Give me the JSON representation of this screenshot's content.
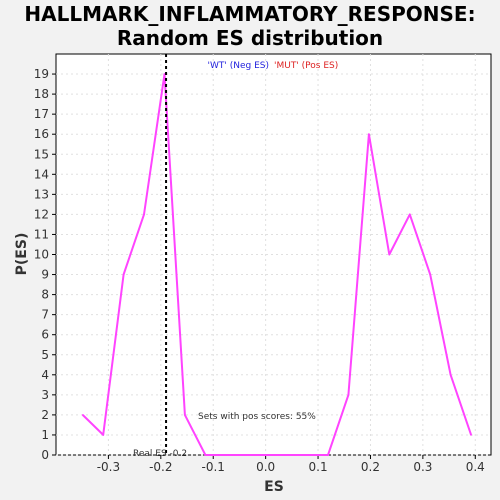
{
  "chart_data": {
    "type": "line",
    "title_line1": "HALLMARK_INFLAMMATORY_RESPONSE:",
    "title_line2": "Random ES distribution",
    "xlabel": "ES",
    "ylabel": "P(ES)",
    "xlim": [
      -0.4,
      0.43
    ],
    "ylim": [
      0,
      20
    ],
    "xticks": [
      -0.3,
      -0.2,
      -0.1,
      0.0,
      0.1,
      0.2,
      0.3,
      0.4
    ],
    "yticks": [
      0,
      1,
      2,
      3,
      4,
      5,
      6,
      7,
      8,
      9,
      10,
      11,
      12,
      13,
      14,
      15,
      16,
      17,
      18,
      19
    ],
    "grid": true,
    "series": [
      {
        "color": "#ff44ff",
        "x": [
          -0.349,
          -0.31,
          -0.271,
          -0.232,
          -0.193,
          -0.154,
          -0.115,
          -0.076,
          -0.037,
          0.002,
          0.041,
          0.08,
          0.119,
          0.158,
          0.197,
          0.236,
          0.275,
          0.314,
          0.353,
          0.392
        ],
        "y": [
          2,
          1,
          9,
          12,
          19,
          2,
          0,
          0,
          0,
          0,
          0,
          0,
          0,
          3,
          16,
          10,
          12,
          9,
          4,
          1
        ]
      }
    ],
    "real_es": -0.19,
    "real_es_label": "Real ES -0.2",
    "legend": [
      {
        "text": "'WT' (Neg ES)",
        "color": "#2222dd"
      },
      {
        "text": "'MUT' (Pos ES)",
        "color": "#dd2222"
      }
    ],
    "legend_position": "top-center",
    "annotation": "Sets with pos scores: 55%"
  }
}
